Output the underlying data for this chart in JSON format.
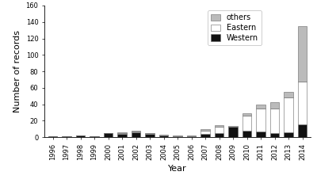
{
  "years": [
    "1996",
    "1997",
    "1998",
    "1999",
    "2000",
    "2001",
    "2002",
    "2003",
    "2004",
    "2005",
    "2006",
    "2007",
    "2008",
    "2009",
    "2010",
    "2011",
    "2012",
    "2013",
    "2014"
  ],
  "western": [
    1,
    1,
    2,
    1,
    5,
    4,
    6,
    4,
    2,
    1,
    1,
    4,
    5,
    13,
    8,
    7,
    5,
    6,
    16
  ],
  "eastern": [
    0,
    0,
    0,
    0,
    0,
    1,
    1,
    1,
    0,
    0,
    0,
    4,
    8,
    0,
    18,
    28,
    30,
    42,
    52
  ],
  "others": [
    0,
    0,
    0,
    0,
    0,
    1,
    1,
    0,
    1,
    1,
    1,
    2,
    2,
    1,
    3,
    5,
    8,
    7,
    67
  ],
  "ylabel": "Number of records",
  "xlabel": "Year",
  "ylim": [
    0,
    160
  ],
  "yticks": [
    0,
    20,
    40,
    60,
    80,
    100,
    120,
    140,
    160
  ],
  "colors_western": "#111111",
  "colors_eastern": "#ffffff",
  "colors_others": "#bbbbbb",
  "edge_color": "#666666",
  "tick_fontsize": 6,
  "label_fontsize": 8,
  "legend_fontsize": 7
}
